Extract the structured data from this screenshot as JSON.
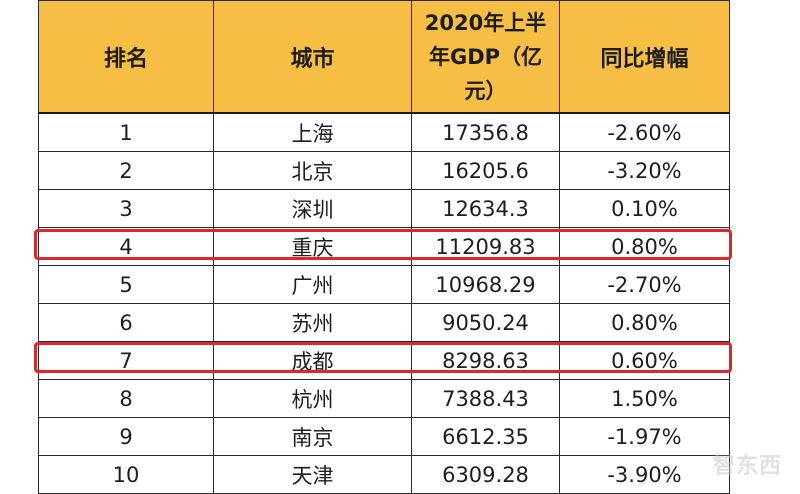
{
  "table": {
    "headers": [
      "排名",
      "城市",
      "2020年上半年GDP（亿元）",
      "同比增幅"
    ],
    "rows": [
      [
        "1",
        "上海",
        "17356.8",
        "-2.60%"
      ],
      [
        "2",
        "北京",
        "16205.6",
        "-3.20%"
      ],
      [
        "3",
        "深圳",
        "12634.3",
        "0.10%"
      ],
      [
        "4",
        "重庆",
        "11209.83",
        "0.80%"
      ],
      [
        "5",
        "广州",
        "10968.29",
        "-2.70%"
      ],
      [
        "6",
        "苏州",
        "9050.24",
        "0.80%"
      ],
      [
        "7",
        "成都",
        "8298.63",
        "0.60%"
      ],
      [
        "8",
        "杭州",
        "7388.43",
        "1.50%"
      ],
      [
        "9",
        "南京",
        "6612.35",
        "-1.97%"
      ],
      [
        "10",
        "天津",
        "6309.28",
        "-3.90%"
      ]
    ],
    "highlighted_ranks": [
      "4",
      "7"
    ],
    "highlight_color": "#e0262b",
    "header_color": "#f7be45"
  },
  "chart_data": {
    "type": "table",
    "columns": [
      "排名",
      "城市",
      "2020年上半年GDP（亿元）",
      "同比增幅"
    ],
    "rows": [
      {
        "rank": 1,
        "city": "上海",
        "gdp": 17356.8,
        "growth": "-2.60%"
      },
      {
        "rank": 2,
        "city": "北京",
        "gdp": 16205.6,
        "growth": "-3.20%"
      },
      {
        "rank": 3,
        "city": "深圳",
        "gdp": 12634.3,
        "growth": "0.10%"
      },
      {
        "rank": 4,
        "city": "重庆",
        "gdp": 11209.83,
        "growth": "0.80%"
      },
      {
        "rank": 5,
        "city": "广州",
        "gdp": 10968.29,
        "growth": "-2.70%"
      },
      {
        "rank": 6,
        "city": "苏州",
        "gdp": 9050.24,
        "growth": "0.80%"
      },
      {
        "rank": 7,
        "city": "成都",
        "gdp": 8298.63,
        "growth": "0.60%"
      },
      {
        "rank": 8,
        "city": "杭州",
        "gdp": 7388.43,
        "growth": "1.50%"
      },
      {
        "rank": 9,
        "city": "南京",
        "gdp": 6612.35,
        "growth": "-1.97%"
      },
      {
        "rank": 10,
        "city": "天津",
        "gdp": 6309.28,
        "growth": "-3.90%"
      }
    ],
    "highlighted_rows": [
      4,
      7
    ]
  },
  "watermark": "智东西"
}
